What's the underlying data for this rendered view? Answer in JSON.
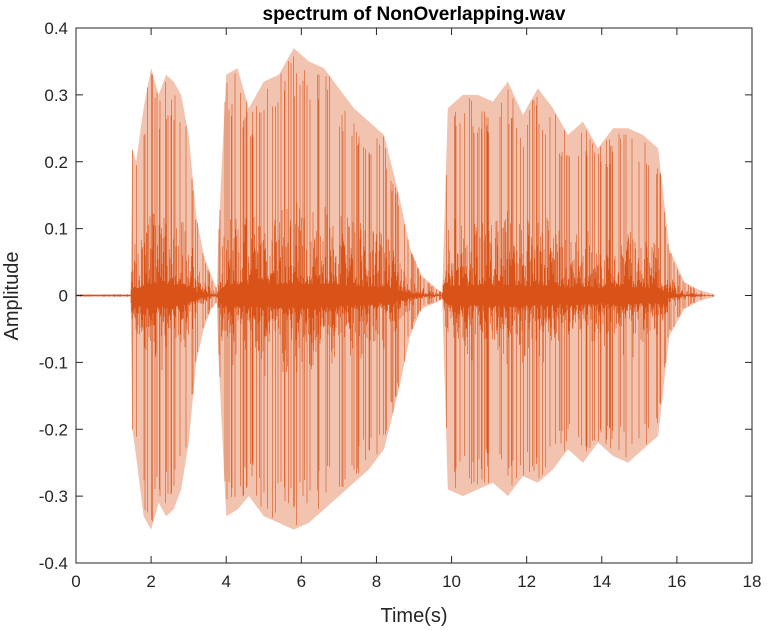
{
  "chart_data": {
    "type": "line",
    "title": "spectrum of NonOverlapping.wav",
    "xlabel": "Time(s)",
    "ylabel": "Amplitude",
    "xlim": [
      0,
      18
    ],
    "ylim": [
      -0.4,
      0.4
    ],
    "x_ticks": [
      "0",
      "2",
      "4",
      "6",
      "8",
      "10",
      "12",
      "14",
      "16",
      "18"
    ],
    "y_ticks": [
      "0.4",
      "0.3",
      "0.2",
      "0.1",
      "0",
      "-0.1",
      "-0.2",
      "-0.3",
      "-0.4"
    ],
    "grid": false,
    "series": [
      {
        "color": "#D95319",
        "x": [
          0,
          0.5,
          1.0,
          1.45,
          1.5,
          1.6,
          1.8,
          2.0,
          2.2,
          2.4,
          2.6,
          2.8,
          3.0,
          3.2,
          3.4,
          3.6,
          3.75,
          3.8,
          4.0,
          4.3,
          4.6,
          5.0,
          5.4,
          5.8,
          6.2,
          6.6,
          7.0,
          7.4,
          7.8,
          8.2,
          8.6,
          8.9,
          9.2,
          9.6,
          9.75,
          9.9,
          10.3,
          10.7,
          11.1,
          11.5,
          11.9,
          12.3,
          12.7,
          13.1,
          13.5,
          13.9,
          14.3,
          14.7,
          15.1,
          15.5,
          15.8,
          16.2,
          16.6,
          17.0
        ],
        "upper": [
          0.002,
          0.002,
          0.002,
          0.002,
          0.22,
          0.2,
          0.28,
          0.34,
          0.3,
          0.33,
          0.32,
          0.3,
          0.24,
          0.12,
          0.06,
          0.03,
          0.01,
          0.1,
          0.33,
          0.34,
          0.28,
          0.32,
          0.33,
          0.37,
          0.35,
          0.34,
          0.31,
          0.28,
          0.26,
          0.24,
          0.15,
          0.07,
          0.03,
          0.01,
          0.005,
          0.28,
          0.3,
          0.3,
          0.29,
          0.32,
          0.27,
          0.31,
          0.28,
          0.24,
          0.26,
          0.22,
          0.25,
          0.25,
          0.24,
          0.22,
          0.07,
          0.02,
          0.008,
          0.002
        ],
        "lower": [
          -0.002,
          -0.002,
          -0.002,
          -0.002,
          -0.2,
          -0.24,
          -0.33,
          -0.35,
          -0.31,
          -0.33,
          -0.32,
          -0.29,
          -0.22,
          -0.1,
          -0.05,
          -0.02,
          -0.01,
          -0.1,
          -0.33,
          -0.32,
          -0.3,
          -0.33,
          -0.34,
          -0.35,
          -0.34,
          -0.32,
          -0.3,
          -0.28,
          -0.26,
          -0.23,
          -0.14,
          -0.06,
          -0.02,
          -0.01,
          -0.005,
          -0.29,
          -0.3,
          -0.29,
          -0.28,
          -0.3,
          -0.27,
          -0.28,
          -0.26,
          -0.23,
          -0.25,
          -0.22,
          -0.24,
          -0.25,
          -0.23,
          -0.21,
          -0.06,
          -0.02,
          -0.008,
          -0.002
        ]
      }
    ]
  }
}
